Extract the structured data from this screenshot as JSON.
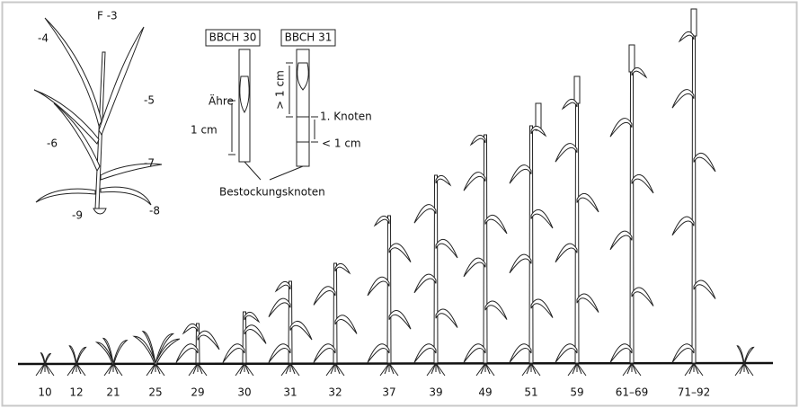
{
  "leaf_labels": [
    "-4",
    "F -3",
    "-5",
    "-6",
    "-7",
    "-8",
    "-9"
  ],
  "detail": {
    "boxes": [
      "BBCH 30",
      "BBCH 31"
    ],
    "ear": "Ähre",
    "length_30": "1 cm",
    "length_31": "> 1 cm",
    "node": "1. Knoten",
    "node_length": "< 1 cm",
    "tillering_node": "Bestockungsknoten"
  },
  "stages": [
    "10",
    "12",
    "21",
    "25",
    "29",
    "30",
    "31",
    "32",
    "37",
    "39",
    "49",
    "51",
    "59",
    "61–69",
    "71–92"
  ]
}
